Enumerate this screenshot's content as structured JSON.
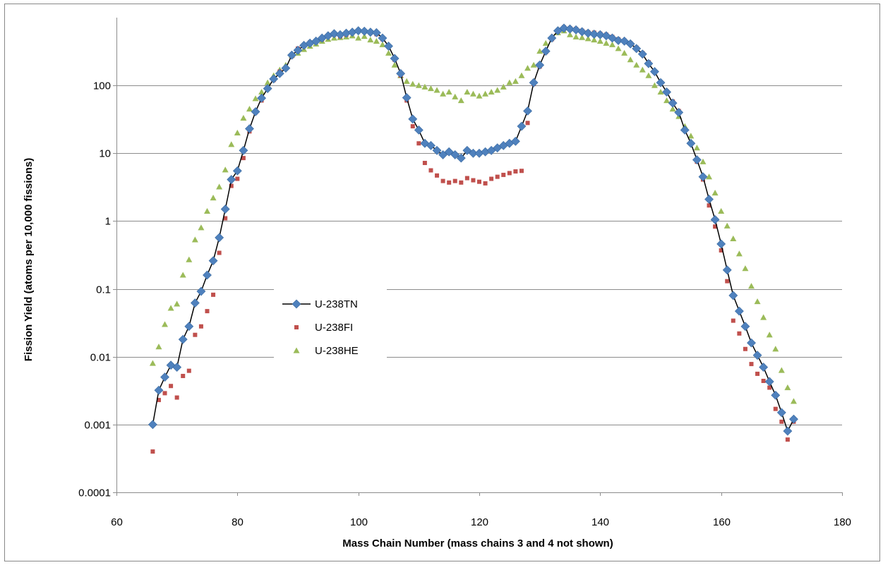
{
  "chart_data": {
    "type": "scatter",
    "title": "",
    "xlabel": "Mass Chain Number (mass chains 3 and 4 not shown)",
    "ylabel": "Fission Yield (atoms per 10,000 fissions)",
    "xlim": [
      60,
      180
    ],
    "ylim": [
      0.0001,
      1000
    ],
    "yscale": "log",
    "x_ticks": [
      60,
      80,
      100,
      120,
      140,
      160,
      180
    ],
    "x_tick_labels": [
      "60",
      "80",
      "100",
      "120",
      "140",
      "160",
      "180"
    ],
    "y_ticks": [
      0.0001,
      0.001,
      0.01,
      0.1,
      1,
      10,
      100
    ],
    "y_tick_labels": [
      "0.0001",
      "0.001",
      "0.01",
      "0.1",
      "1",
      "10",
      "100"
    ],
    "grid": "horizontal",
    "legend_position": "center-left",
    "series": [
      {
        "name": "U-238TN",
        "marker": "diamond",
        "line": true,
        "color": "#4f81bd",
        "line_color": "#000000",
        "x": [
          66,
          67,
          68,
          69,
          70,
          71,
          72,
          73,
          74,
          75,
          76,
          77,
          78,
          79,
          80,
          81,
          82,
          83,
          84,
          85,
          86,
          87,
          88,
          89,
          90,
          91,
          92,
          93,
          94,
          95,
          96,
          97,
          98,
          99,
          100,
          101,
          102,
          103,
          104,
          105,
          106,
          107,
          108,
          109,
          110,
          111,
          112,
          113,
          114,
          115,
          116,
          117,
          118,
          119,
          120,
          121,
          122,
          123,
          124,
          125,
          126,
          127,
          128,
          129,
          130,
          131,
          132,
          133,
          134,
          135,
          136,
          137,
          138,
          139,
          140,
          141,
          142,
          143,
          144,
          145,
          146,
          147,
          148,
          149,
          150,
          151,
          152,
          153,
          154,
          155,
          156,
          157,
          158,
          159,
          160,
          161,
          162,
          163,
          164,
          165,
          166,
          167,
          168,
          169,
          170,
          171,
          172
        ],
        "y": [
          0.001,
          0.0032,
          0.005,
          0.0075,
          0.007,
          0.018,
          0.028,
          0.062,
          0.092,
          0.16,
          0.26,
          0.57,
          1.5,
          4.1,
          5.5,
          11,
          23,
          41,
          65,
          90,
          125,
          150,
          180,
          280,
          330,
          390,
          420,
          450,
          500,
          540,
          580,
          560,
          590,
          610,
          640,
          630,
          610,
          600,
          500,
          380,
          250,
          150,
          66,
          32,
          22,
          14,
          13,
          11,
          9.5,
          10.5,
          9.5,
          8.5,
          11,
          10,
          10,
          10.5,
          11,
          12,
          13,
          14,
          15,
          25,
          42,
          110,
          200,
          320,
          500,
          640,
          700,
          680,
          660,
          620,
          590,
          570,
          560,
          540,
          500,
          460,
          450,
          410,
          350,
          290,
          210,
          160,
          110,
          80,
          55,
          40,
          22,
          14,
          8,
          4.5,
          2.1,
          1.05,
          0.46,
          0.19,
          0.08,
          0.047,
          0.028,
          0.016,
          0.0105,
          0.007,
          0.0043,
          0.0027,
          0.0015,
          0.0008,
          0.0012
        ]
      },
      {
        "name": "U-238FI",
        "marker": "square",
        "line": false,
        "color": "#c0504d",
        "x": [
          66,
          67,
          68,
          69,
          70,
          71,
          72,
          73,
          74,
          75,
          76,
          77,
          78,
          79,
          80,
          81,
          82,
          83,
          84,
          85,
          86,
          87,
          88,
          89,
          90,
          91,
          92,
          93,
          94,
          95,
          96,
          97,
          98,
          99,
          100,
          101,
          102,
          103,
          104,
          105,
          106,
          107,
          108,
          109,
          110,
          111,
          112,
          113,
          114,
          115,
          116,
          117,
          118,
          119,
          120,
          121,
          122,
          123,
          124,
          125,
          126,
          127,
          128,
          129,
          130,
          131,
          132,
          133,
          134,
          135,
          136,
          137,
          138,
          139,
          140,
          141,
          142,
          143,
          144,
          145,
          146,
          147,
          148,
          149,
          150,
          151,
          152,
          153,
          154,
          155,
          156,
          157,
          158,
          159,
          160,
          161,
          162,
          163,
          164,
          165,
          166,
          167,
          168,
          169,
          170,
          171,
          172
        ],
        "y": [
          0.0004,
          0.0023,
          0.0029,
          0.0037,
          0.0025,
          0.0052,
          0.0062,
          0.021,
          0.028,
          0.047,
          0.082,
          0.34,
          1.1,
          3.3,
          4.2,
          8.5,
          21,
          40,
          60,
          90,
          120,
          160,
          180,
          270,
          350,
          380,
          430,
          440,
          480,
          540,
          560,
          530,
          560,
          600,
          640,
          620,
          600,
          570,
          480,
          370,
          240,
          140,
          60,
          25,
          14,
          7.2,
          5.6,
          4.7,
          3.9,
          3.7,
          3.9,
          3.7,
          4.3,
          4,
          3.8,
          3.6,
          4.2,
          4.5,
          4.8,
          5.1,
          5.4,
          5.5,
          28,
          105,
          190,
          310,
          480,
          630,
          720,
          700,
          680,
          640,
          610,
          600,
          580,
          560,
          520,
          480,
          460,
          420,
          360,
          300,
          220,
          160,
          110,
          82,
          58,
          42,
          22,
          14,
          7.5,
          4.1,
          1.7,
          0.83,
          0.37,
          0.13,
          0.034,
          0.022,
          0.013,
          0.0078,
          0.0056,
          0.0044,
          0.0035,
          0.0017,
          0.0011,
          0.0006,
          0.0011
        ]
      },
      {
        "name": "U-238HE",
        "marker": "triangle",
        "line": false,
        "color": "#9bbb59",
        "x": [
          66,
          67,
          68,
          69,
          70,
          71,
          72,
          73,
          74,
          75,
          76,
          77,
          78,
          79,
          80,
          81,
          82,
          83,
          84,
          85,
          86,
          87,
          88,
          89,
          90,
          91,
          92,
          93,
          94,
          95,
          96,
          97,
          98,
          99,
          100,
          101,
          102,
          103,
          104,
          105,
          106,
          107,
          108,
          109,
          110,
          111,
          112,
          113,
          114,
          115,
          116,
          117,
          118,
          119,
          120,
          121,
          122,
          123,
          124,
          125,
          126,
          127,
          128,
          129,
          130,
          131,
          132,
          133,
          134,
          135,
          136,
          137,
          138,
          139,
          140,
          141,
          142,
          143,
          144,
          145,
          146,
          147,
          148,
          149,
          150,
          151,
          152,
          153,
          154,
          155,
          156,
          157,
          158,
          159,
          160,
          161,
          162,
          163,
          164,
          165,
          166,
          167,
          168,
          169,
          170,
          171,
          172
        ],
        "y": [
          0.008,
          0.014,
          0.03,
          0.052,
          0.06,
          0.16,
          0.27,
          0.53,
          0.8,
          1.4,
          2.2,
          3.2,
          5.7,
          13.5,
          20,
          33,
          45,
          64,
          80,
          110,
          140,
          170,
          200,
          280,
          300,
          340,
          380,
          410,
          450,
          480,
          500,
          510,
          520,
          540,
          500,
          530,
          470,
          450,
          400,
          300,
          200,
          140,
          115,
          105,
          100,
          95,
          90,
          85,
          75,
          80,
          68,
          60,
          80,
          75,
          70,
          75,
          80,
          85,
          95,
          110,
          115,
          140,
          180,
          200,
          320,
          420,
          520,
          600,
          640,
          560,
          520,
          510,
          490,
          470,
          450,
          420,
          400,
          350,
          300,
          240,
          200,
          170,
          140,
          100,
          80,
          60,
          45,
          35,
          25,
          18,
          12,
          7.5,
          4.5,
          2.6,
          1.4,
          0.85,
          0.55,
          0.33,
          0.2,
          0.11,
          0.065,
          0.038,
          0.021,
          0.013,
          0.0063,
          0.0035,
          0.0022
        ]
      }
    ]
  }
}
